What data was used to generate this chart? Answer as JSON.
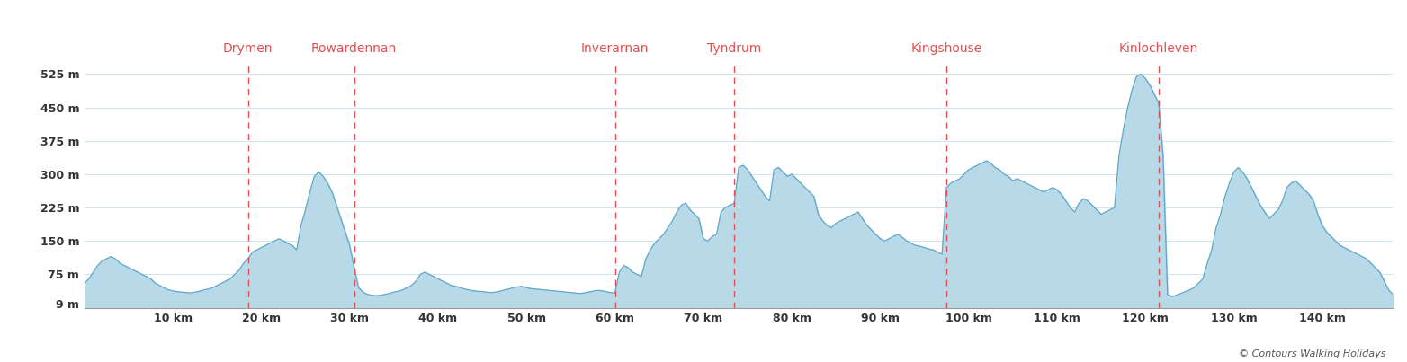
{
  "waypoints": [
    {
      "name": "Drymen",
      "km": 18.5
    },
    {
      "name": "Rowardennan",
      "km": 30.5
    },
    {
      "name": "Inverarnan",
      "km": 60.0
    },
    {
      "name": "Tyndrum",
      "km": 73.5
    },
    {
      "name": "Kingshouse",
      "km": 97.5
    },
    {
      "name": "Kinlochleven",
      "km": 121.5
    }
  ],
  "yticks": [
    9,
    75,
    150,
    225,
    300,
    375,
    450,
    525
  ],
  "xticks": [
    10,
    20,
    30,
    40,
    50,
    60,
    70,
    80,
    90,
    100,
    110,
    120,
    130,
    140
  ],
  "xlim": [
    0,
    148
  ],
  "ylim": [
    0,
    545
  ],
  "fill_color": "#b8d9e8",
  "line_color": "#5fa8c8",
  "dashed_color": "#e05050",
  "waypoint_label_color": "#e05050",
  "bg_color": "#ffffff",
  "grid_color": "#cce4f0",
  "copyright_text": "© Contours Walking Holidays",
  "elevation_data": [
    [
      0,
      55
    ],
    [
      0.5,
      65
    ],
    [
      1,
      80
    ],
    [
      1.5,
      95
    ],
    [
      2,
      105
    ],
    [
      2.5,
      110
    ],
    [
      3,
      115
    ],
    [
      3.5,
      110
    ],
    [
      4,
      100
    ],
    [
      4.5,
      95
    ],
    [
      5,
      90
    ],
    [
      5.5,
      85
    ],
    [
      6,
      80
    ],
    [
      6.5,
      75
    ],
    [
      7,
      70
    ],
    [
      7.5,
      65
    ],
    [
      8,
      55
    ],
    [
      8.5,
      50
    ],
    [
      9,
      45
    ],
    [
      9.5,
      40
    ],
    [
      10,
      38
    ],
    [
      10.5,
      36
    ],
    [
      11,
      35
    ],
    [
      11.5,
      34
    ],
    [
      12,
      33
    ],
    [
      12.5,
      35
    ],
    [
      13,
      37
    ],
    [
      13.5,
      40
    ],
    [
      14,
      42
    ],
    [
      14.5,
      45
    ],
    [
      15,
      50
    ],
    [
      15.5,
      55
    ],
    [
      16,
      60
    ],
    [
      16.5,
      65
    ],
    [
      17,
      75
    ],
    [
      17.5,
      85
    ],
    [
      18,
      100
    ],
    [
      18.5,
      110
    ],
    [
      19,
      125
    ],
    [
      19.5,
      130
    ],
    [
      20,
      135
    ],
    [
      20.5,
      140
    ],
    [
      21,
      145
    ],
    [
      21.5,
      150
    ],
    [
      22,
      155
    ],
    [
      22.5,
      150
    ],
    [
      23,
      145
    ],
    [
      23.5,
      140
    ],
    [
      24,
      130
    ],
    [
      24.5,
      185
    ],
    [
      25,
      220
    ],
    [
      25.5,
      260
    ],
    [
      26,
      295
    ],
    [
      26.5,
      305
    ],
    [
      27,
      295
    ],
    [
      27.5,
      280
    ],
    [
      28,
      260
    ],
    [
      28.5,
      230
    ],
    [
      29,
      200
    ],
    [
      29.5,
      170
    ],
    [
      30,
      140
    ],
    [
      30.5,
      90
    ],
    [
      31,
      45
    ],
    [
      31.5,
      35
    ],
    [
      32,
      30
    ],
    [
      32.5,
      28
    ],
    [
      33,
      27
    ],
    [
      33.5,
      28
    ],
    [
      34,
      30
    ],
    [
      34.5,
      32
    ],
    [
      35,
      35
    ],
    [
      35.5,
      37
    ],
    [
      36,
      40
    ],
    [
      36.5,
      45
    ],
    [
      37,
      50
    ],
    [
      37.5,
      60
    ],
    [
      38,
      75
    ],
    [
      38.5,
      80
    ],
    [
      39,
      75
    ],
    [
      39.5,
      70
    ],
    [
      40,
      65
    ],
    [
      40.5,
      60
    ],
    [
      41,
      55
    ],
    [
      41.5,
      50
    ],
    [
      42,
      48
    ],
    [
      42.5,
      45
    ],
    [
      43,
      42
    ],
    [
      43.5,
      40
    ],
    [
      44,
      38
    ],
    [
      44.5,
      37
    ],
    [
      45,
      36
    ],
    [
      45.5,
      35
    ],
    [
      46,
      34
    ],
    [
      46.5,
      35
    ],
    [
      47,
      37
    ],
    [
      47.5,
      40
    ],
    [
      48,
      42
    ],
    [
      48.5,
      45
    ],
    [
      49,
      47
    ],
    [
      49.5,
      48
    ],
    [
      50,
      45
    ],
    [
      50.5,
      43
    ],
    [
      51,
      42
    ],
    [
      51.5,
      41
    ],
    [
      52,
      40
    ],
    [
      52.5,
      39
    ],
    [
      53,
      38
    ],
    [
      53.5,
      37
    ],
    [
      54,
      36
    ],
    [
      54.5,
      35
    ],
    [
      55,
      34
    ],
    [
      55.5,
      33
    ],
    [
      56,
      32
    ],
    [
      56.5,
      33
    ],
    [
      57,
      35
    ],
    [
      57.5,
      37
    ],
    [
      58,
      39
    ],
    [
      58.5,
      38
    ],
    [
      59,
      36
    ],
    [
      59.5,
      34
    ],
    [
      60,
      33
    ],
    [
      60.5,
      80
    ],
    [
      61,
      95
    ],
    [
      61.5,
      90
    ],
    [
      62,
      80
    ],
    [
      62.5,
      75
    ],
    [
      63,
      70
    ],
    [
      63.5,
      110
    ],
    [
      64,
      130
    ],
    [
      64.5,
      145
    ],
    [
      65,
      155
    ],
    [
      65.5,
      165
    ],
    [
      66,
      180
    ],
    [
      66.5,
      195
    ],
    [
      67,
      215
    ],
    [
      67.5,
      230
    ],
    [
      68,
      235
    ],
    [
      68.5,
      220
    ],
    [
      69,
      210
    ],
    [
      69.5,
      200
    ],
    [
      70,
      155
    ],
    [
      70.5,
      150
    ],
    [
      71,
      160
    ],
    [
      71.5,
      165
    ],
    [
      72,
      215
    ],
    [
      72.5,
      225
    ],
    [
      73,
      230
    ],
    [
      73.5,
      235
    ],
    [
      74,
      315
    ],
    [
      74.5,
      320
    ],
    [
      75,
      310
    ],
    [
      75.5,
      295
    ],
    [
      76,
      280
    ],
    [
      76.5,
      265
    ],
    [
      77,
      250
    ],
    [
      77.5,
      240
    ],
    [
      78,
      310
    ],
    [
      78.5,
      315
    ],
    [
      79,
      305
    ],
    [
      79.5,
      295
    ],
    [
      80,
      300
    ],
    [
      80.5,
      290
    ],
    [
      81,
      280
    ],
    [
      81.5,
      270
    ],
    [
      82,
      260
    ],
    [
      82.5,
      250
    ],
    [
      83,
      210
    ],
    [
      83.5,
      195
    ],
    [
      84,
      185
    ],
    [
      84.5,
      180
    ],
    [
      85,
      190
    ],
    [
      85.5,
      195
    ],
    [
      86,
      200
    ],
    [
      86.5,
      205
    ],
    [
      87,
      210
    ],
    [
      87.5,
      215
    ],
    [
      88,
      200
    ],
    [
      88.5,
      185
    ],
    [
      89,
      175
    ],
    [
      89.5,
      165
    ],
    [
      90,
      155
    ],
    [
      90.5,
      150
    ],
    [
      91,
      155
    ],
    [
      91.5,
      160
    ],
    [
      92,
      165
    ],
    [
      92.5,
      158
    ],
    [
      93,
      150
    ],
    [
      93.5,
      145
    ],
    [
      94,
      140
    ],
    [
      94.5,
      138
    ],
    [
      95,
      135
    ],
    [
      95.5,
      132
    ],
    [
      96,
      130
    ],
    [
      96.5,
      125
    ],
    [
      97,
      120
    ],
    [
      97.5,
      270
    ],
    [
      98,
      280
    ],
    [
      98.5,
      285
    ],
    [
      99,
      290
    ],
    [
      99.5,
      300
    ],
    [
      100,
      310
    ],
    [
      100.5,
      315
    ],
    [
      101,
      320
    ],
    [
      101.5,
      325
    ],
    [
      102,
      330
    ],
    [
      102.5,
      325
    ],
    [
      103,
      315
    ],
    [
      103.5,
      310
    ],
    [
      104,
      300
    ],
    [
      104.5,
      295
    ],
    [
      105,
      285
    ],
    [
      105.5,
      290
    ],
    [
      106,
      285
    ],
    [
      106.5,
      280
    ],
    [
      107,
      275
    ],
    [
      107.5,
      270
    ],
    [
      108,
      265
    ],
    [
      108.5,
      260
    ],
    [
      109,
      265
    ],
    [
      109.5,
      270
    ],
    [
      110,
      265
    ],
    [
      110.5,
      255
    ],
    [
      111,
      240
    ],
    [
      111.5,
      225
    ],
    [
      112,
      215
    ],
    [
      112.5,
      235
    ],
    [
      113,
      245
    ],
    [
      113.5,
      240
    ],
    [
      114,
      230
    ],
    [
      114.5,
      220
    ],
    [
      115,
      210
    ],
    [
      115.5,
      215
    ],
    [
      116,
      220
    ],
    [
      116.5,
      225
    ],
    [
      117,
      340
    ],
    [
      117.5,
      400
    ],
    [
      118,
      450
    ],
    [
      118.5,
      490
    ],
    [
      119,
      520
    ],
    [
      119.5,
      525
    ],
    [
      120,
      515
    ],
    [
      120.5,
      500
    ],
    [
      121,
      480
    ],
    [
      121.5,
      460
    ],
    [
      122,
      340
    ],
    [
      122.5,
      30
    ],
    [
      123,
      25
    ],
    [
      123.5,
      28
    ],
    [
      124,
      32
    ],
    [
      124.5,
      36
    ],
    [
      125,
      40
    ],
    [
      125.5,
      45
    ],
    [
      126,
      55
    ],
    [
      126.5,
      65
    ],
    [
      127,
      100
    ],
    [
      127.5,
      130
    ],
    [
      128,
      180
    ],
    [
      128.5,
      210
    ],
    [
      129,
      250
    ],
    [
      129.5,
      280
    ],
    [
      130,
      305
    ],
    [
      130.5,
      315
    ],
    [
      131,
      305
    ],
    [
      131.5,
      290
    ],
    [
      132,
      270
    ],
    [
      132.5,
      250
    ],
    [
      133,
      230
    ],
    [
      133.5,
      215
    ],
    [
      134,
      200
    ],
    [
      134.5,
      210
    ],
    [
      135,
      220
    ],
    [
      135.5,
      240
    ],
    [
      136,
      270
    ],
    [
      136.5,
      280
    ],
    [
      137,
      285
    ],
    [
      137.5,
      275
    ],
    [
      138,
      265
    ],
    [
      138.5,
      255
    ],
    [
      139,
      240
    ],
    [
      139.5,
      210
    ],
    [
      140,
      185
    ],
    [
      140.5,
      170
    ],
    [
      141,
      160
    ],
    [
      141.5,
      150
    ],
    [
      142,
      140
    ],
    [
      142.5,
      135
    ],
    [
      143,
      130
    ],
    [
      143.5,
      125
    ],
    [
      144,
      120
    ],
    [
      144.5,
      115
    ],
    [
      145,
      110
    ],
    [
      145.5,
      100
    ],
    [
      146,
      90
    ],
    [
      146.5,
      80
    ],
    [
      147,
      60
    ],
    [
      147.5,
      40
    ],
    [
      148,
      30
    ]
  ]
}
